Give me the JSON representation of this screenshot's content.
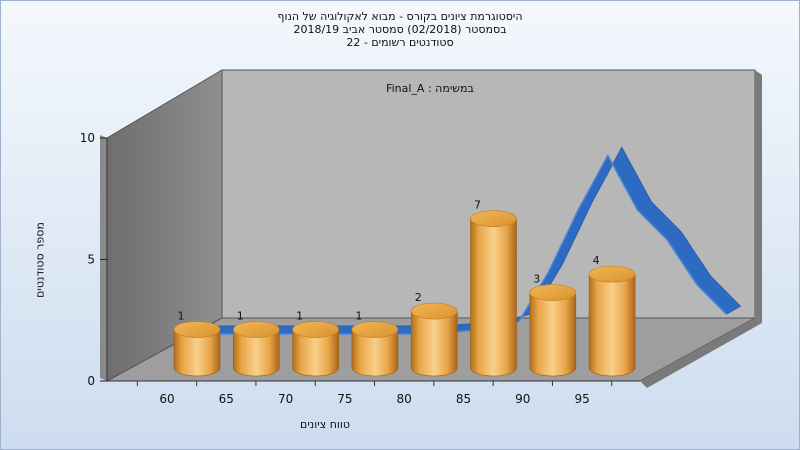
{
  "chart_data": {
    "type": "bar",
    "title_lines": [
      "היסטוגרמת ציונים בקורס - מבוא לאקולוגיה של הנוף",
      "בסמסטר  (02/2018)  סמסטר אביב 2018/19",
      "סטודנטים רשומים - 22"
    ],
    "annotation": "Final_A : במשימה",
    "xlabel": "טווח ציונים",
    "ylabel": "מספר סטודנטים",
    "x_ticks": [
      "60",
      "65",
      "70",
      "75",
      "80",
      "85",
      "90",
      "95"
    ],
    "y_ticks": [
      "0",
      "5",
      "10"
    ],
    "ylim": [
      0,
      10
    ],
    "bars": [
      {
        "x": 60,
        "value": 1,
        "label": "1"
      },
      {
        "x": 65,
        "value": 1,
        "label": "1"
      },
      {
        "x": 70,
        "value": 1,
        "label": "1"
      },
      {
        "x": 75,
        "value": 1,
        "label": "1"
      },
      {
        "x": 80,
        "value": 2,
        "label": "2"
      },
      {
        "x": 85,
        "value": 7,
        "label": "7"
      },
      {
        "x": 90,
        "value": 3,
        "label": "3"
      },
      {
        "x": 95,
        "value": 4,
        "label": "4"
      }
    ],
    "trend_line": {
      "x": [
        55,
        60,
        65,
        70,
        75,
        80,
        82.5,
        85,
        87.5,
        90,
        92.5,
        95,
        97.5,
        100
      ],
      "values": [
        0,
        0,
        0,
        0,
        0,
        0.2,
        0.5,
        2.5,
        5,
        7.2,
        5,
        3.8,
        2,
        0.8
      ]
    },
    "grid": false,
    "colors": {
      "bar_light": "#f8d08b",
      "bar_mid": "#e9a548",
      "bar_dark": "#b06f19",
      "trend": "#2d6bc2",
      "back_wall": "#b7b7b7",
      "side_wall": "#7c7c7c",
      "floor": "#9e9e9e"
    }
  }
}
